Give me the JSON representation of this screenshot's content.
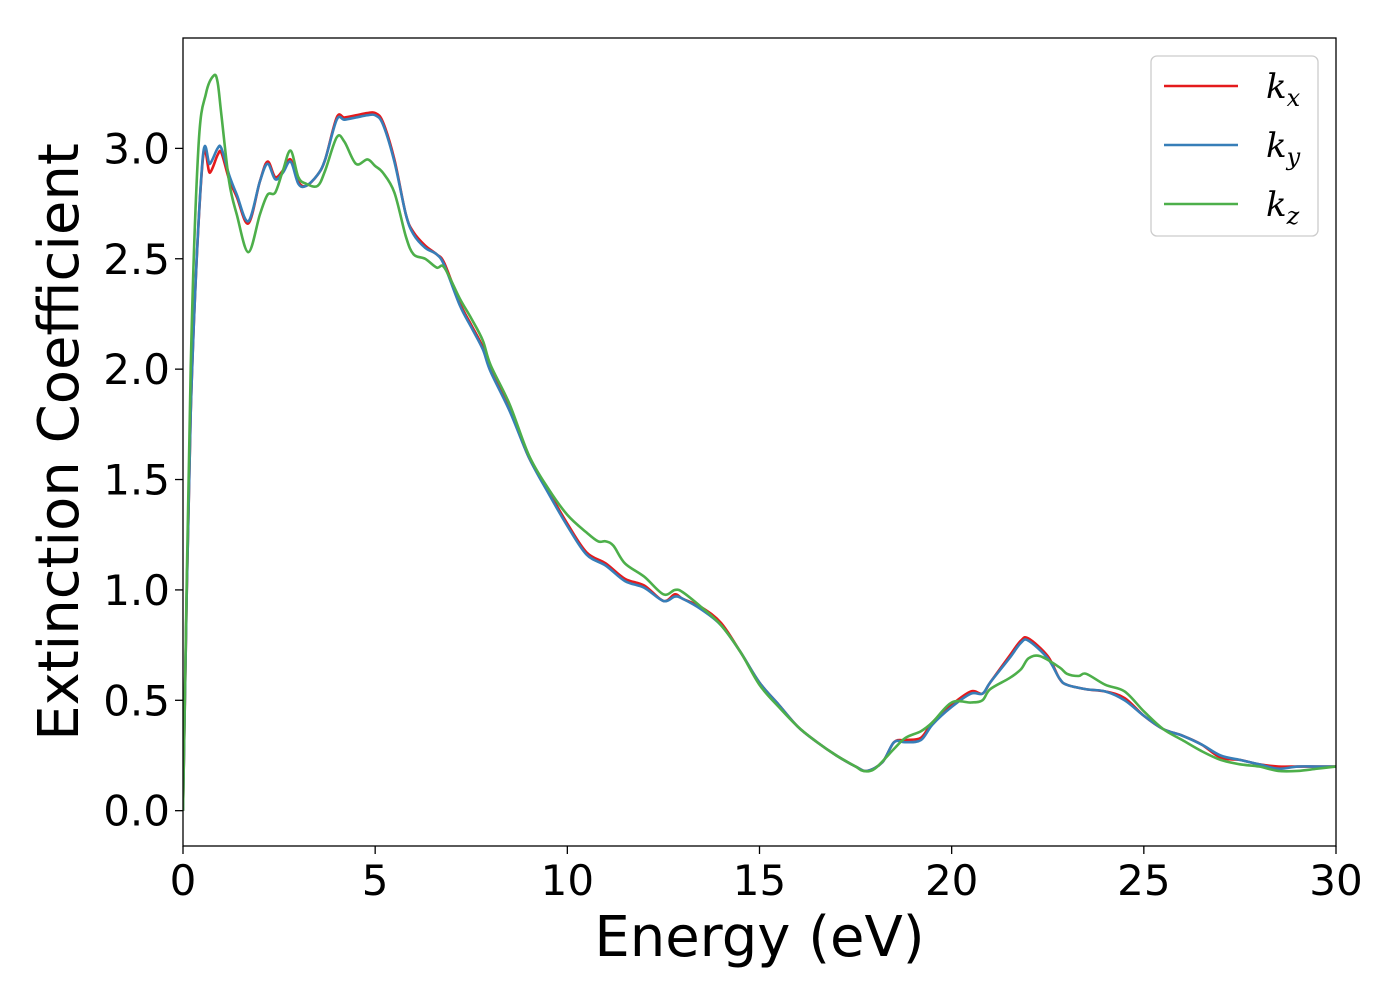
{
  "chart_data": {
    "type": "line",
    "title": "",
    "xlabel": "Energy (eV)",
    "ylabel": "Extinction Coefficient",
    "xlim": [
      0,
      30
    ],
    "ylim": [
      -0.16,
      3.5
    ],
    "xticks": [
      0,
      5,
      10,
      15,
      20,
      25,
      30
    ],
    "yticks": [
      0.0,
      0.5,
      1.0,
      1.5,
      2.0,
      2.5,
      3.0
    ],
    "xtick_labels": [
      "0",
      "5",
      "10",
      "15",
      "20",
      "25",
      "30"
    ],
    "ytick_labels": [
      "0.0",
      "0.5",
      "1.0",
      "1.5",
      "2.0",
      "2.5",
      "3.0"
    ],
    "grid": false,
    "legend_position": "top-right",
    "series": [
      {
        "name": "k_x",
        "label_base": "k",
        "label_sub": "x",
        "color": "#e41a1c",
        "x": [
          0,
          0.2,
          0.5,
          0.7,
          0.9,
          1.0,
          1.2,
          1.4,
          1.7,
          2.0,
          2.2,
          2.4,
          2.6,
          2.8,
          3.0,
          3.2,
          3.5,
          3.7,
          4.0,
          4.2,
          4.5,
          4.8,
          5.0,
          5.2,
          5.5,
          5.8,
          6.0,
          6.3,
          6.6,
          6.8,
          7.2,
          7.5,
          7.8,
          8.0,
          8.5,
          9.0,
          9.5,
          10.0,
          10.5,
          11.0,
          11.5,
          12.0,
          12.5,
          12.8,
          13.0,
          13.5,
          14.0,
          14.5,
          15.0,
          15.5,
          16.0,
          16.5,
          17.0,
          17.5,
          17.8,
          18.2,
          18.5,
          18.8,
          19.2,
          19.5,
          20.0,
          20.5,
          20.8,
          21.0,
          21.5,
          21.8,
          22.0,
          22.5,
          22.8,
          23.0,
          23.5,
          24.0,
          24.5,
          25.0,
          25.5,
          26.0,
          26.5,
          27.0,
          27.5,
          28.0,
          28.5,
          29.0,
          29.5,
          30.0
        ],
        "y": [
          0.0,
          1.8,
          2.92,
          2.89,
          2.97,
          2.98,
          2.86,
          2.78,
          2.66,
          2.85,
          2.94,
          2.87,
          2.9,
          2.95,
          2.85,
          2.83,
          2.88,
          2.95,
          3.14,
          3.14,
          3.15,
          3.16,
          3.16,
          3.12,
          2.95,
          2.7,
          2.62,
          2.56,
          2.52,
          2.48,
          2.3,
          2.2,
          2.1,
          2.0,
          1.82,
          1.6,
          1.45,
          1.3,
          1.17,
          1.12,
          1.05,
          1.02,
          0.95,
          0.98,
          0.96,
          0.92,
          0.85,
          0.72,
          0.58,
          0.48,
          0.38,
          0.31,
          0.25,
          0.2,
          0.18,
          0.22,
          0.31,
          0.32,
          0.33,
          0.4,
          0.48,
          0.54,
          0.53,
          0.58,
          0.7,
          0.77,
          0.78,
          0.7,
          0.6,
          0.57,
          0.55,
          0.54,
          0.51,
          0.43,
          0.37,
          0.34,
          0.3,
          0.24,
          0.23,
          0.21,
          0.2,
          0.2,
          0.2,
          0.2
        ]
      },
      {
        "name": "k_y",
        "label_base": "k",
        "label_sub": "y",
        "color": "#377eb8",
        "x": [
          0,
          0.2,
          0.5,
          0.7,
          0.9,
          1.0,
          1.2,
          1.4,
          1.7,
          2.0,
          2.2,
          2.4,
          2.6,
          2.8,
          3.0,
          3.2,
          3.5,
          3.7,
          4.0,
          4.2,
          4.5,
          4.8,
          5.0,
          5.2,
          5.5,
          5.8,
          6.0,
          6.3,
          6.6,
          6.8,
          7.2,
          7.5,
          7.8,
          8.0,
          8.5,
          9.0,
          9.5,
          10.0,
          10.5,
          11.0,
          11.5,
          12.0,
          12.5,
          12.8,
          13.0,
          13.5,
          14.0,
          14.5,
          15.0,
          15.5,
          16.0,
          16.5,
          17.0,
          17.5,
          17.8,
          18.2,
          18.5,
          18.8,
          19.2,
          19.5,
          20.0,
          20.5,
          20.8,
          21.0,
          21.5,
          21.8,
          22.0,
          22.5,
          22.8,
          23.0,
          23.5,
          24.0,
          24.5,
          25.0,
          25.5,
          26.0,
          26.5,
          27.0,
          27.5,
          28.0,
          28.5,
          29.0,
          29.5,
          30.0
        ],
        "y": [
          0.0,
          1.8,
          2.93,
          2.93,
          3.0,
          3.0,
          2.88,
          2.79,
          2.67,
          2.85,
          2.93,
          2.86,
          2.89,
          2.94,
          2.84,
          2.83,
          2.88,
          2.95,
          3.13,
          3.13,
          3.14,
          3.15,
          3.15,
          3.11,
          2.94,
          2.7,
          2.61,
          2.55,
          2.52,
          2.47,
          2.29,
          2.19,
          2.09,
          1.99,
          1.81,
          1.6,
          1.44,
          1.29,
          1.16,
          1.11,
          1.04,
          1.01,
          0.95,
          0.97,
          0.96,
          0.91,
          0.84,
          0.72,
          0.58,
          0.48,
          0.38,
          0.31,
          0.25,
          0.2,
          0.18,
          0.22,
          0.31,
          0.31,
          0.32,
          0.39,
          0.47,
          0.53,
          0.53,
          0.58,
          0.69,
          0.76,
          0.77,
          0.69,
          0.6,
          0.57,
          0.55,
          0.54,
          0.5,
          0.43,
          0.37,
          0.34,
          0.3,
          0.25,
          0.23,
          0.21,
          0.19,
          0.2,
          0.2,
          0.2
        ]
      },
      {
        "name": "k_z",
        "label_base": "k",
        "label_sub": "z",
        "color": "#4daf4a",
        "x": [
          0,
          0.2,
          0.4,
          0.6,
          0.8,
          0.9,
          1.0,
          1.2,
          1.4,
          1.7,
          2.0,
          2.2,
          2.4,
          2.6,
          2.8,
          3.0,
          3.2,
          3.5,
          3.7,
          4.0,
          4.2,
          4.5,
          4.8,
          5.0,
          5.2,
          5.5,
          5.8,
          6.0,
          6.3,
          6.6,
          6.8,
          7.2,
          7.5,
          7.8,
          8.0,
          8.5,
          9.0,
          9.5,
          10.0,
          10.5,
          10.8,
          11.0,
          11.2,
          11.5,
          12.0,
          12.5,
          12.8,
          13.0,
          13.5,
          14.0,
          14.5,
          15.0,
          15.5,
          16.0,
          16.5,
          17.0,
          17.5,
          17.7,
          18.0,
          18.5,
          18.8,
          19.2,
          19.5,
          20.0,
          20.5,
          20.8,
          21.0,
          21.5,
          21.8,
          22.0,
          22.3,
          22.8,
          23.0,
          23.3,
          23.5,
          24.0,
          24.5,
          25.0,
          25.5,
          26.0,
          26.5,
          27.0,
          27.5,
          28.0,
          28.5,
          29.0,
          29.5,
          30.0
        ],
        "y": [
          0.0,
          2.0,
          3.0,
          3.25,
          3.33,
          3.3,
          3.15,
          2.85,
          2.7,
          2.53,
          2.7,
          2.79,
          2.8,
          2.9,
          2.99,
          2.87,
          2.84,
          2.83,
          2.9,
          3.05,
          3.03,
          2.93,
          2.95,
          2.92,
          2.89,
          2.8,
          2.6,
          2.52,
          2.5,
          2.46,
          2.46,
          2.32,
          2.23,
          2.13,
          2.02,
          1.84,
          1.61,
          1.46,
          1.34,
          1.26,
          1.22,
          1.22,
          1.2,
          1.12,
          1.06,
          0.98,
          1.0,
          0.99,
          0.92,
          0.84,
          0.72,
          0.57,
          0.47,
          0.38,
          0.31,
          0.25,
          0.2,
          0.18,
          0.19,
          0.28,
          0.33,
          0.36,
          0.4,
          0.49,
          0.49,
          0.5,
          0.55,
          0.6,
          0.64,
          0.69,
          0.7,
          0.65,
          0.62,
          0.61,
          0.62,
          0.57,
          0.54,
          0.45,
          0.37,
          0.32,
          0.27,
          0.23,
          0.21,
          0.2,
          0.18,
          0.18,
          0.19,
          0.2
        ]
      }
    ]
  }
}
